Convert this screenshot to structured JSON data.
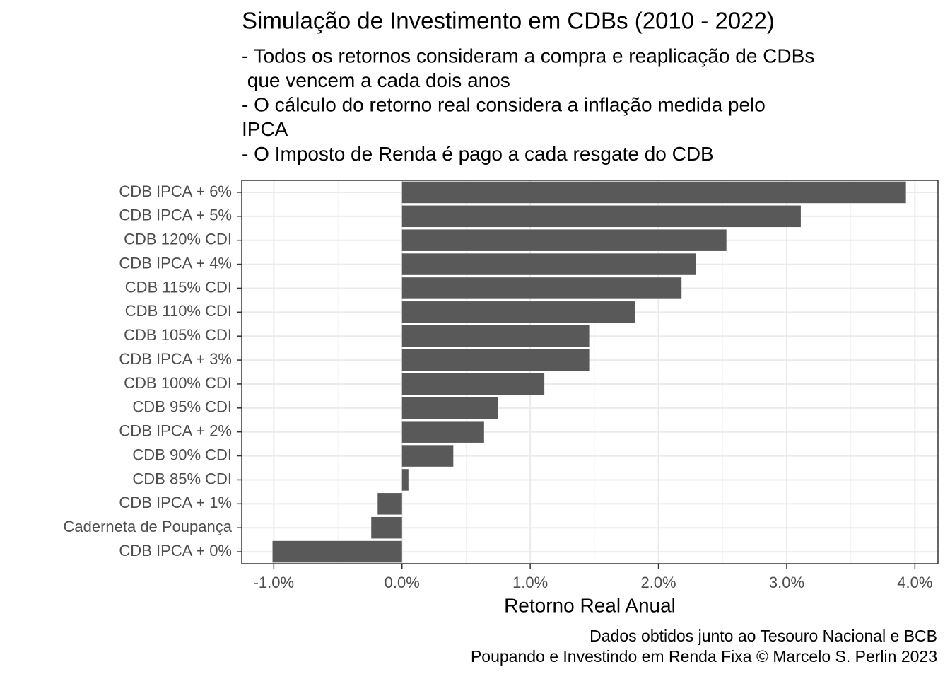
{
  "chart_data": {
    "type": "bar",
    "orientation": "horizontal",
    "title": "Simulação de Investimento em CDBs (2010 - 2022)",
    "subtitle": [
      "- Todos os retornos consideram a compra e reaplicação de CDBs",
      " que vencem a cada dois anos",
      "- O cálculo do retorno real considera a inflação medida pelo",
      "IPCA",
      "- O Imposto de Renda é pago a cada resgate do CDB"
    ],
    "x_label": "Retorno Real Anual",
    "caption": [
      "Dados obtidos junto ao Tesouro Nacional e BCB",
      "Poupando e Investindo em Renda Fixa © Marcelo S. Perlin 2023"
    ],
    "categories": [
      "CDB IPCA + 6%",
      "CDB IPCA + 5%",
      "CDB 120% CDI",
      "CDB IPCA + 4%",
      "CDB 115% CDI",
      "CDB 110% CDI",
      "CDB 105% CDI",
      "CDB IPCA + 3%",
      "CDB 100% CDI",
      "CDB 95% CDI",
      "CDB IPCA + 2%",
      "CDB 90% CDI",
      "CDB 85% CDI",
      "CDB IPCA + 1%",
      "Caderneta de Poupança",
      "CDB IPCA + 0%"
    ],
    "values": [
      3.93,
      3.11,
      2.53,
      2.29,
      2.18,
      1.82,
      1.46,
      1.46,
      1.11,
      0.75,
      0.64,
      0.4,
      0.05,
      -0.19,
      -0.24,
      -1.01
    ],
    "color": "#595959",
    "xlim": [
      -1.25,
      4.18
    ],
    "xticks": [
      {
        "value": -1,
        "label": "-1.0%"
      },
      {
        "value": 0,
        "label": "0.0%"
      },
      {
        "value": 1,
        "label": "1.0%"
      },
      {
        "value": 2,
        "label": "2.0%"
      },
      {
        "value": 3,
        "label": "3.0%"
      },
      {
        "value": 4,
        "label": "4.0%"
      }
    ],
    "grid": true
  }
}
